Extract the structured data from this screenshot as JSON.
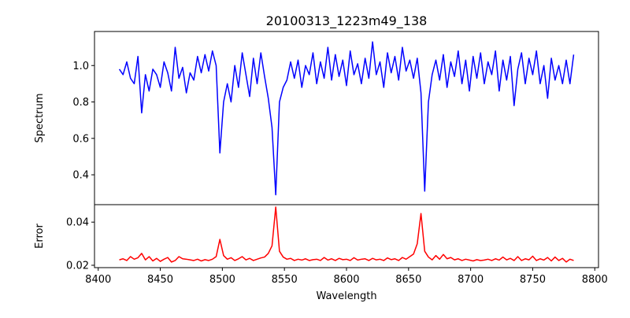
{
  "chart_data": [
    {
      "type": "line",
      "title": "20100313_1223m49_138",
      "xlabel": "",
      "ylabel": "Spectrum",
      "xlim": [
        8397,
        8803
      ],
      "ylim": [
        0.236,
        1.187
      ],
      "yticks": [
        0.4,
        0.6,
        0.8,
        1.0
      ],
      "ytick_labels": [
        "0.4",
        "0.6",
        "0.8",
        "1.0"
      ],
      "grid": false,
      "series": [
        {
          "name": "Spectrum",
          "color": "#0000ff",
          "x_start": 8417,
          "x_step": 3,
          "y": [
            0.98,
            0.95,
            1.02,
            0.93,
            0.9,
            1.05,
            0.74,
            0.95,
            0.86,
            0.98,
            0.95,
            0.88,
            1.02,
            0.96,
            0.86,
            1.1,
            0.93,
            0.99,
            0.85,
            0.96,
            0.92,
            1.05,
            0.96,
            1.06,
            0.97,
            1.08,
            1.0,
            0.52,
            0.8,
            0.9,
            0.8,
            1.0,
            0.88,
            1.07,
            0.95,
            0.83,
            1.04,
            0.9,
            1.07,
            0.94,
            0.82,
            0.66,
            0.29,
            0.8,
            0.88,
            0.92,
            1.02,
            0.93,
            1.03,
            0.88,
            1.0,
            0.95,
            1.07,
            0.9,
            1.02,
            0.93,
            1.1,
            0.92,
            1.06,
            0.94,
            1.03,
            0.89,
            1.08,
            0.95,
            1.01,
            0.9,
            1.04,
            0.93,
            1.13,
            0.95,
            1.02,
            0.88,
            1.07,
            0.96,
            1.05,
            0.92,
            1.1,
            0.97,
            1.03,
            0.93,
            1.04,
            0.85,
            0.31,
            0.8,
            0.95,
            1.03,
            0.92,
            1.06,
            0.88,
            1.02,
            0.94,
            1.08,
            0.9,
            1.03,
            0.86,
            1.05,
            0.93,
            1.07,
            0.9,
            1.02,
            0.95,
            1.08,
            0.86,
            1.03,
            0.92,
            1.05,
            0.78,
            0.98,
            1.07,
            0.9,
            1.04,
            0.95,
            1.08,
            0.9,
            1.0,
            0.82,
            1.04,
            0.92,
            1.0,
            0.9,
            1.03,
            0.9,
            1.06
          ]
        }
      ]
    },
    {
      "type": "line",
      "title": "",
      "xlabel": "Wavelength",
      "ylabel": "Error",
      "xlim": [
        8397,
        8803
      ],
      "ylim": [
        0.0189,
        0.0481
      ],
      "xticks": [
        8400,
        8450,
        8500,
        8550,
        8600,
        8650,
        8700,
        8750,
        8800
      ],
      "xtick_labels": [
        "8400",
        "8450",
        "8500",
        "8550",
        "8600",
        "8650",
        "8700",
        "8750",
        "8800"
      ],
      "yticks": [
        0.02,
        0.04
      ],
      "ytick_labels": [
        "0.02",
        "0.04"
      ],
      "grid": false,
      "series": [
        {
          "name": "Error",
          "color": "#ff0000",
          "x_start": 8417,
          "x_step": 3,
          "y": [
            0.0225,
            0.023,
            0.0222,
            0.024,
            0.0228,
            0.0235,
            0.0255,
            0.0225,
            0.024,
            0.022,
            0.0232,
            0.0218,
            0.0228,
            0.0236,
            0.0215,
            0.0222,
            0.024,
            0.023,
            0.0228,
            0.0225,
            0.0222,
            0.0228,
            0.022,
            0.0226,
            0.0222,
            0.0228,
            0.024,
            0.032,
            0.0245,
            0.0228,
            0.0235,
            0.0222,
            0.023,
            0.024,
            0.0225,
            0.0232,
            0.0222,
            0.0228,
            0.0234,
            0.0238,
            0.0255,
            0.029,
            0.047,
            0.0265,
            0.0238,
            0.0228,
            0.0232,
            0.0222,
            0.0228,
            0.0224,
            0.023,
            0.0222,
            0.0226,
            0.0228,
            0.0222,
            0.0236,
            0.0224,
            0.023,
            0.0222,
            0.0232,
            0.0226,
            0.0228,
            0.0222,
            0.0235,
            0.0224,
            0.0228,
            0.023,
            0.0222,
            0.0232,
            0.0225,
            0.0228,
            0.0222,
            0.0234,
            0.0226,
            0.023,
            0.0222,
            0.0236,
            0.0228,
            0.024,
            0.0252,
            0.03,
            0.044,
            0.0265,
            0.0238,
            0.0225,
            0.0245,
            0.0228,
            0.025,
            0.023,
            0.0236,
            0.0225,
            0.023,
            0.0222,
            0.0228,
            0.0224,
            0.022,
            0.0226,
            0.0222,
            0.0224,
            0.0228,
            0.0222,
            0.023,
            0.0224,
            0.0238,
            0.0225,
            0.0232,
            0.0222,
            0.024,
            0.0222,
            0.023,
            0.0225,
            0.0242,
            0.0222,
            0.023,
            0.0224,
            0.0236,
            0.022,
            0.0238,
            0.0222,
            0.0232,
            0.0215,
            0.0228,
            0.0222
          ]
        }
      ]
    }
  ]
}
